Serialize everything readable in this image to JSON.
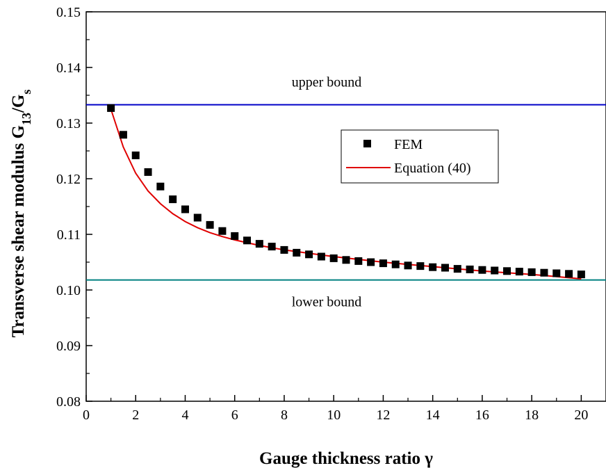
{
  "chart_data": {
    "type": "scatter",
    "xlabel": "Gauge thickness ratio γ",
    "ylabel_main": "Transverse shear modulus G",
    "ylabel_sub1": "13",
    "ylabel_mid": "/G",
    "ylabel_sub2": "s",
    "xlim": [
      0,
      21
    ],
    "ylim": [
      0.08,
      0.15
    ],
    "x_ticks": [
      "0",
      "2",
      "4",
      "6",
      "8",
      "10",
      "12",
      "14",
      "16",
      "18",
      "20"
    ],
    "y_ticks": [
      "0.08",
      "0.09",
      "0.10",
      "0.11",
      "0.12",
      "0.13",
      "0.14",
      "0.15"
    ],
    "x_tick_values": [
      0,
      2,
      4,
      6,
      8,
      10,
      12,
      14,
      16,
      18,
      20
    ],
    "y_tick_values": [
      0.08,
      0.09,
      0.1,
      0.11,
      0.12,
      0.13,
      0.14,
      0.15
    ],
    "grid": false,
    "legend_position": "upper-right",
    "series": [
      {
        "name": "FEM",
        "kind": "scatter",
        "marker": "square",
        "color": "#000000",
        "x": [
          1,
          1.5,
          2,
          2.5,
          3,
          3.5,
          4,
          4.5,
          5,
          5.5,
          6,
          6.5,
          7,
          7.5,
          8,
          8.5,
          9,
          9.5,
          10,
          10.5,
          11,
          11.5,
          12,
          12.5,
          13,
          13.5,
          14,
          14.5,
          15,
          15.5,
          16,
          16.5,
          17,
          17.5,
          18,
          18.5,
          19,
          19.5,
          20
        ],
        "y": [
          0.1327,
          0.1279,
          0.1242,
          0.1212,
          0.1186,
          0.1163,
          0.1145,
          0.113,
          0.1117,
          0.1106,
          0.1097,
          0.1089,
          0.1083,
          0.1078,
          0.1072,
          0.1067,
          0.1064,
          0.106,
          0.1057,
          0.1054,
          0.1052,
          0.105,
          0.1048,
          0.1046,
          0.1044,
          0.1043,
          0.1041,
          0.104,
          0.1038,
          0.1037,
          0.1036,
          0.1035,
          0.1034,
          0.1033,
          0.1032,
          0.1031,
          0.103,
          0.1029,
          0.1028
        ]
      },
      {
        "name": "Equation (40)",
        "kind": "line",
        "color": "#e00000",
        "x": [
          1,
          1.5,
          2,
          2.5,
          3,
          3.5,
          4,
          4.5,
          5,
          5.5,
          6,
          6.5,
          7,
          7.5,
          8,
          8.5,
          9,
          9.5,
          10,
          11,
          12,
          13,
          14,
          15,
          16,
          17,
          18,
          19,
          20
        ],
        "y": [
          0.1325,
          0.1257,
          0.121,
          0.1178,
          0.1155,
          0.1137,
          0.1123,
          0.1112,
          0.1103,
          0.1096,
          0.109,
          0.1085,
          0.108,
          0.1076,
          0.1072,
          0.1069,
          0.1066,
          0.1063,
          0.106,
          0.1055,
          0.105,
          0.1046,
          0.1042,
          0.1038,
          0.1034,
          0.1031,
          0.1028,
          0.1024,
          0.102
        ]
      }
    ],
    "reference_lines": [
      {
        "label": "upper bound",
        "y": 0.1333,
        "color": "#0000c8"
      },
      {
        "label": "lower bound",
        "y": 0.1018,
        "color": "#008080"
      }
    ]
  }
}
